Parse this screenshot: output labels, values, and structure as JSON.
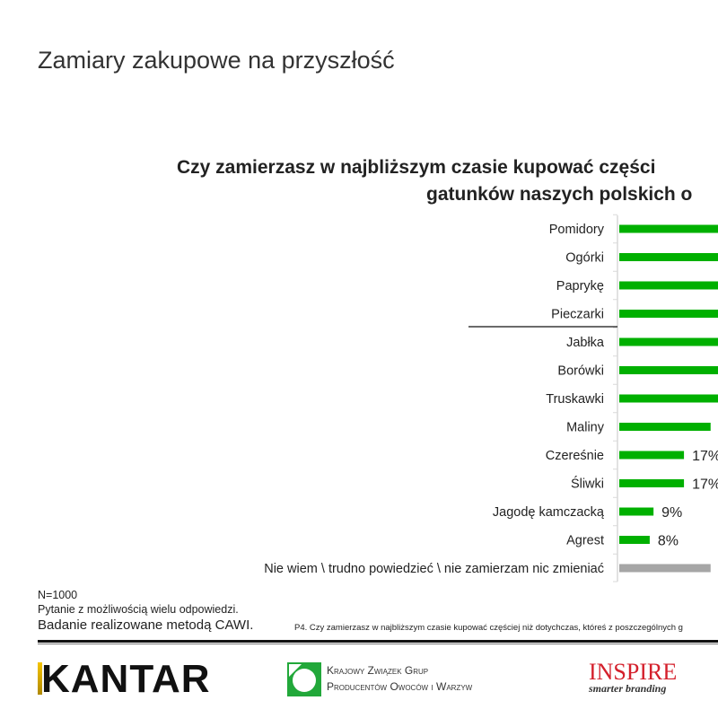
{
  "page": {
    "title": "Zamiary zakupowe na przyszłość",
    "notes": {
      "n": "N=1000",
      "multi": "Pytanie z możliwością wielu odpowiedzi.",
      "method": "Badanie realizowane metodą CAWI.",
      "question": "P4. Czy zamierzasz w najbliższym czasie kupować częściej niż dotychczas, któreś z poszczególnych g"
    },
    "logos": {
      "kantar": "KANTAR",
      "kzgpow_line1": "Krajowy Związek Grup",
      "kzgpow_line2": "Producentów Owoców i Warzyw",
      "inspire": "INSPIRE",
      "inspire_tagline": "smarter branding"
    }
  },
  "chart_data": {
    "type": "bar",
    "orientation": "horizontal",
    "title_lines": [
      "Czy zamierzasz w najbliższym czasie kupować części",
      "gatunków naszych polskich o"
    ],
    "categories": [
      "Pomidory",
      "Ogórki",
      "Paprykę",
      "Pieczarki",
      "Jabłka",
      "Borówki",
      "Truskawki",
      "Maliny",
      "Czereśnie",
      "Śliwki",
      "Jagodę kamczacką",
      "Agrest",
      "Nie wiem \\ trudno powiedzieć \\ nie zamierzam nic zmieniać"
    ],
    "values": [
      null,
      null,
      null,
      null,
      null,
      null,
      null,
      24,
      17,
      17,
      9,
      8,
      24
    ],
    "data_labels": [
      "",
      "",
      "",
      "",
      "",
      "",
      "",
      "",
      "17%",
      "17%",
      "9%",
      "8%",
      ""
    ],
    "colors": {
      "bar": "#00b000",
      "neutral_bar": "#a6a6a6",
      "axis": "#d9d9d9"
    },
    "unit": "%"
  }
}
